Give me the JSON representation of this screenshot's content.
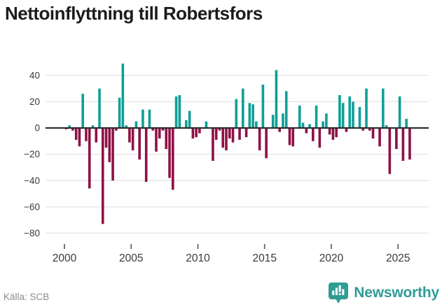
{
  "title": "Nettoinflyttning till Robertsfors",
  "footer": {
    "source": "Källa: SCB",
    "brand": "Newsworthy"
  },
  "chart_data": {
    "type": "bar",
    "title": "Nettoinflyttning till Robertsfors",
    "xlabel": "",
    "ylabel": "",
    "x_start": "2000-Q1",
    "x_step": "quarter",
    "values": [
      -1,
      2,
      -2,
      -9,
      -14,
      26,
      -10,
      -46,
      2,
      -11,
      30,
      -73,
      -15,
      -26,
      -40,
      -2,
      23,
      49,
      2,
      -11,
      -17,
      5,
      -24,
      14,
      -41,
      14,
      -2,
      -18,
      -8,
      -2,
      -16,
      -38,
      -47,
      24,
      25,
      0,
      6,
      13,
      -8,
      -7,
      -4,
      0,
      5,
      0,
      -25,
      -9,
      -2,
      -15,
      -17,
      -8,
      -11,
      22,
      -9,
      30,
      -7,
      19,
      18,
      5,
      -17,
      33,
      -23,
      0,
      10,
      44,
      -3,
      11,
      28,
      -13,
      -14,
      0,
      17,
      4,
      -4,
      3,
      -10,
      17,
      -15,
      5,
      11,
      -5,
      -9,
      -7,
      25,
      19,
      -3,
      24,
      20,
      0,
      16,
      -2,
      30,
      -2,
      -8,
      0,
      -14,
      30,
      2,
      -35,
      0,
      -16,
      24,
      -25,
      7,
      -24
    ],
    "xticks": [
      2000,
      2005,
      2010,
      2015,
      2020,
      2025
    ],
    "yticks": [
      40,
      20,
      0,
      -20,
      -40,
      -60,
      -80
    ],
    "ylim": [
      -80,
      50
    ],
    "xlim_years": [
      1998.6,
      2027.3
    ],
    "grid": true,
    "legend": false,
    "colors": {
      "positive": "#0f9f97",
      "negative": "#8e1146",
      "grid": "#e4e4e4",
      "zero_line": "#2e2e2e",
      "tick": "#666666",
      "brand": "#2f9c95"
    }
  }
}
